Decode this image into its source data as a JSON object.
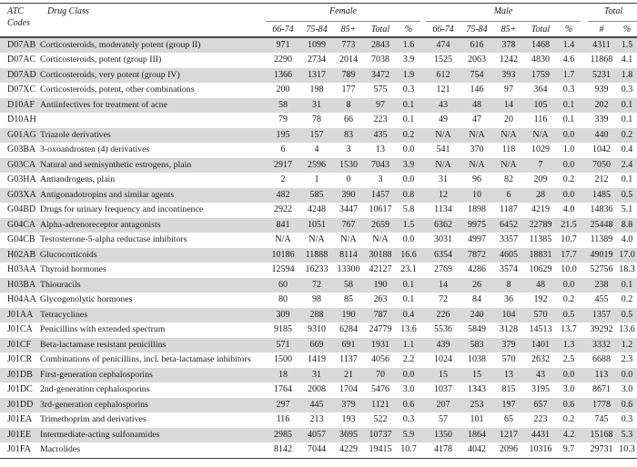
{
  "colors": {
    "stripe": "#d9d9d9",
    "rule_dark": "#4a4a4a",
    "rule_mid": "#8a8a8a",
    "text": "#1a1a1a",
    "bg": "#ffffff"
  },
  "header": {
    "atc_line1": "ATC",
    "atc_line2": "Codes",
    "drug_class_label": "Drug Class",
    "groups": {
      "female": "Female",
      "male": "Male",
      "total": "Total"
    },
    "sub": [
      "66-74",
      "75-84",
      "85+",
      "Total",
      "%",
      "66-74",
      "75-84",
      "85+",
      "Total",
      "%",
      "#",
      "%"
    ]
  },
  "table": {
    "rows": [
      {
        "atc": "D07AB",
        "drug_class": "Corticosteroids, moderately potent (group II)",
        "cells": [
          "971",
          "1099",
          "773",
          "2843",
          "1.6",
          "474",
          "616",
          "378",
          "1468",
          "1.4",
          "4311",
          "1.5"
        ]
      },
      {
        "atc": "D07AC",
        "drug_class": "Corticosteroids, potent (group III)",
        "cells": [
          "2290",
          "2734",
          "2014",
          "7038",
          "3.9",
          "1525",
          "2063",
          "1242",
          "4830",
          "4.6",
          "11868",
          "4.1"
        ]
      },
      {
        "atc": "D07AD",
        "drug_class": "Corticosteroids, very potent (group IV)",
        "cells": [
          "1366",
          "1317",
          "789",
          "3472",
          "1.9",
          "612",
          "754",
          "393",
          "1759",
          "1.7",
          "5231",
          "1.8"
        ]
      },
      {
        "atc": "D07XC",
        "drug_class": "Corticosteroids, potent, other combinations",
        "cells": [
          "200",
          "198",
          "177",
          "575",
          "0.3",
          "121",
          "146",
          "97",
          "364",
          "0.3",
          "939",
          "0.3"
        ]
      },
      {
        "atc": "D10AF",
        "drug_class": "Antiinfectives for treatment of acne",
        "cells": [
          "58",
          "31",
          "8",
          "97",
          "0.1",
          "43",
          "48",
          "14",
          "105",
          "0.1",
          "202",
          "0.1"
        ]
      },
      {
        "atc": "D10AH",
        "drug_class": "",
        "cells": [
          "79",
          "78",
          "66",
          "223",
          "0.1",
          "49",
          "47",
          "20",
          "116",
          "0.1",
          "339",
          "0.1"
        ]
      },
      {
        "atc": "G01AG",
        "drug_class": "Triazole derivatives",
        "cells": [
          "195",
          "157",
          "83",
          "435",
          "0.2",
          "N/A",
          "N/A",
          "N/A",
          "N/A",
          "0.0",
          "440",
          "0.2"
        ]
      },
      {
        "atc": "G03BA",
        "drug_class": "3-oxoandrosten (4) derivatives",
        "cells": [
          "6",
          "4",
          "3",
          "13",
          "0.0",
          "541",
          "370",
          "118",
          "1029",
          "1.0",
          "1042",
          "0.4"
        ]
      },
      {
        "atc": "G03CA",
        "drug_class": "Natural and semisynthetic estrogens, plain",
        "cells": [
          "2917",
          "2596",
          "1530",
          "7043",
          "3.9",
          "N/A",
          "N/A",
          "N/A",
          "7",
          "0.0",
          "7050",
          "2.4"
        ]
      },
      {
        "atc": "G03HA",
        "drug_class": "Antiandrogens, plain",
        "cells": [
          "2",
          "1",
          "0",
          "3",
          "0.0",
          "31",
          "96",
          "82",
          "209",
          "0.2",
          "212",
          "0.1"
        ]
      },
      {
        "atc": "G03XA",
        "drug_class": "Antigonadotropins and similar agents",
        "cells": [
          "482",
          "585",
          "390",
          "1457",
          "0.8",
          "12",
          "10",
          "6",
          "28",
          "0.0",
          "1485",
          "0.5"
        ]
      },
      {
        "atc": "G04BD",
        "drug_class": "Drugs for urinary frequency and incontinence",
        "cells": [
          "2922",
          "4248",
          "3447",
          "10617",
          "5.8",
          "1134",
          "1898",
          "1187",
          "4219",
          "4.0",
          "14836",
          "5.1"
        ]
      },
      {
        "atc": "G04CA",
        "drug_class": "Alpha-adrenoreceptor antagonists",
        "cells": [
          "841",
          "1051",
          "767",
          "2659",
          "1.5",
          "6362",
          "9975",
          "6452",
          "22789",
          "21.5",
          "25448",
          "8.8"
        ]
      },
      {
        "atc": "G04CB",
        "drug_class": "Testosterone-5-alpha reductase inhibitors",
        "cells": [
          "N/A",
          "N/A",
          "N/A",
          "N/A",
          "0.0",
          "3031",
          "4997",
          "3357",
          "11385",
          "10.7",
          "11389",
          "4.0"
        ]
      },
      {
        "atc": "H02AB",
        "drug_class": "Glucocorticoids",
        "cells": [
          "10186",
          "11888",
          "8114",
          "30188",
          "16.6",
          "6354",
          "7872",
          "4605",
          "18831",
          "17.7",
          "49019",
          "17.0"
        ]
      },
      {
        "atc": "H03AA",
        "drug_class": "Thyroid hormones",
        "cells": [
          "12594",
          "16233",
          "13300",
          "42127",
          "23.1",
          "2769",
          "4286",
          "3574",
          "10629",
          "10.0",
          "52756",
          "18.3"
        ]
      },
      {
        "atc": "H03BA",
        "drug_class": "Thiouracils",
        "cells": [
          "60",
          "72",
          "58",
          "190",
          "0.1",
          "14",
          "26",
          "8",
          "48",
          "0.0",
          "238",
          "0.1"
        ]
      },
      {
        "atc": "H04AA",
        "drug_class": "Glycogenolytic hormones",
        "cells": [
          "80",
          "98",
          "85",
          "263",
          "0.1",
          "72",
          "84",
          "36",
          "192",
          "0.2",
          "455",
          "0.2"
        ]
      },
      {
        "atc": "J01AA",
        "drug_class": "Tetracyclines",
        "cells": [
          "309",
          "288",
          "190",
          "787",
          "0.4",
          "226",
          "240",
          "104",
          "570",
          "0.5",
          "1357",
          "0.5"
        ]
      },
      {
        "atc": "J01CA",
        "drug_class": "Penicillins with extended spectrum",
        "cells": [
          "9185",
          "9310",
          "6284",
          "24779",
          "13.6",
          "5536",
          "5849",
          "3128",
          "14513",
          "13.7",
          "39292",
          "13.6"
        ]
      },
      {
        "atc": "J01CF",
        "drug_class": "Beta-lactamase resistant penicillins",
        "cells": [
          "571",
          "669",
          "691",
          "1931",
          "1.1",
          "439",
          "583",
          "379",
          "1401",
          "1.3",
          "3332",
          "1.2"
        ]
      },
      {
        "atc": "J01CR",
        "drug_class": "Combinations of penicillins, incl. beta-lactamase inhibitors",
        "cells": [
          "1500",
          "1419",
          "1137",
          "4056",
          "2.2",
          "1024",
          "1038",
          "570",
          "2632",
          "2.5",
          "6688",
          "2.3"
        ]
      },
      {
        "atc": "J01DB",
        "drug_class": "First-generation cephalosporins",
        "cells": [
          "18",
          "31",
          "21",
          "70",
          "0.0",
          "15",
          "15",
          "13",
          "43",
          "0.0",
          "113",
          "0.0"
        ]
      },
      {
        "atc": "J01DC",
        "drug_class": "2nd-generation cephalosporins",
        "cells": [
          "1764",
          "2008",
          "1704",
          "5476",
          "3.0",
          "1037",
          "1343",
          "815",
          "3195",
          "3.0",
          "8671",
          "3.0"
        ]
      },
      {
        "atc": "J01DD",
        "drug_class": "3rd-generation cephalosporins",
        "cells": [
          "297",
          "445",
          "379",
          "1121",
          "0.6",
          "207",
          "253",
          "197",
          "657",
          "0.6",
          "1778",
          "0.6"
        ]
      },
      {
        "atc": "J01EA",
        "drug_class": "Trimethoprim and derivatives",
        "cells": [
          "116",
          "213",
          "193",
          "522",
          "0.3",
          "57",
          "101",
          "65",
          "223",
          "0.2",
          "745",
          "0.3"
        ]
      },
      {
        "atc": "J01EE",
        "drug_class": "Intermediate-acting sulfonamides",
        "cells": [
          "2985",
          "4057",
          "3695",
          "10737",
          "5.9",
          "1350",
          "1864",
          "1217",
          "4431",
          "4.2",
          "15168",
          "5.3"
        ]
      },
      {
        "atc": "J01FA",
        "drug_class": "Macrolides",
        "cells": [
          "8142",
          "7044",
          "4229",
          "19415",
          "10.7",
          "4178",
          "4042",
          "2096",
          "10316",
          "9.7",
          "29731",
          "10.3"
        ]
      }
    ]
  }
}
